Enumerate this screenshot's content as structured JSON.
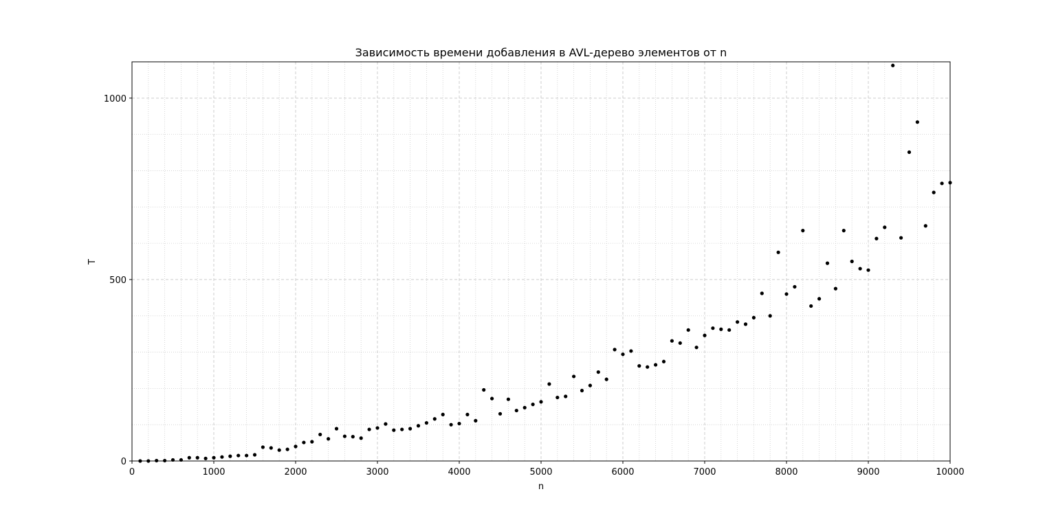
{
  "chart_data": {
    "type": "scatter",
    "title": "Зависимость времени добавления в AVL-дерево элементов от n",
    "xlabel": "n",
    "ylabel": "T",
    "xlim": [
      0,
      10000
    ],
    "ylim": [
      0,
      1100
    ],
    "x_ticks": [
      0,
      1000,
      2000,
      3000,
      4000,
      5000,
      6000,
      7000,
      8000,
      9000,
      10000
    ],
    "y_ticks": [
      0,
      500,
      1000
    ],
    "grid": "major dashed, minor dotted",
    "marker_color": "#000000",
    "x": [
      100,
      200,
      300,
      400,
      500,
      600,
      700,
      800,
      900,
      1000,
      1100,
      1200,
      1300,
      1400,
      1500,
      1600,
      1700,
      1800,
      1900,
      2000,
      2100,
      2200,
      2300,
      2400,
      2500,
      2600,
      2700,
      2800,
      2900,
      3000,
      3100,
      3200,
      3300,
      3400,
      3500,
      3600,
      3700,
      3800,
      3900,
      4000,
      4100,
      4200,
      4300,
      4400,
      4500,
      4600,
      4700,
      4800,
      4900,
      5000,
      5100,
      5200,
      5300,
      5400,
      5500,
      5600,
      5700,
      5800,
      5900,
      6000,
      6100,
      6200,
      6300,
      6400,
      6500,
      6600,
      6700,
      6800,
      6900,
      7000,
      7100,
      7200,
      7300,
      7400,
      7500,
      7600,
      7700,
      7800,
      7900,
      8000,
      8100,
      8200,
      8300,
      8400,
      8500,
      8600,
      8700,
      8800,
      8900,
      9000,
      9100,
      9200,
      9300,
      9400,
      9500,
      9600,
      9700,
      9800,
      9900,
      10000
    ],
    "y": [
      0,
      0,
      1,
      1,
      3,
      3,
      9,
      9,
      7,
      9,
      11,
      13,
      15,
      15,
      17,
      38,
      36,
      30,
      32,
      40,
      51,
      53,
      73,
      61,
      89,
      68,
      67,
      63,
      87,
      91,
      102,
      85,
      87,
      89,
      97,
      105,
      116,
      128,
      100,
      103,
      128,
      111,
      196,
      172,
      130,
      170,
      139,
      147,
      156,
      163,
      212,
      175,
      178,
      233,
      194,
      208,
      245,
      225,
      307,
      294,
      303,
      262,
      259,
      265,
      274,
      331,
      325,
      361,
      313,
      346,
      366,
      363,
      361,
      383,
      377,
      395,
      462,
      400,
      575,
      460,
      480,
      635,
      427,
      447,
      545,
      475,
      635,
      550,
      530,
      526,
      613,
      644,
      1090,
      615,
      851,
      934,
      648,
      740,
      765,
      767
    ]
  }
}
